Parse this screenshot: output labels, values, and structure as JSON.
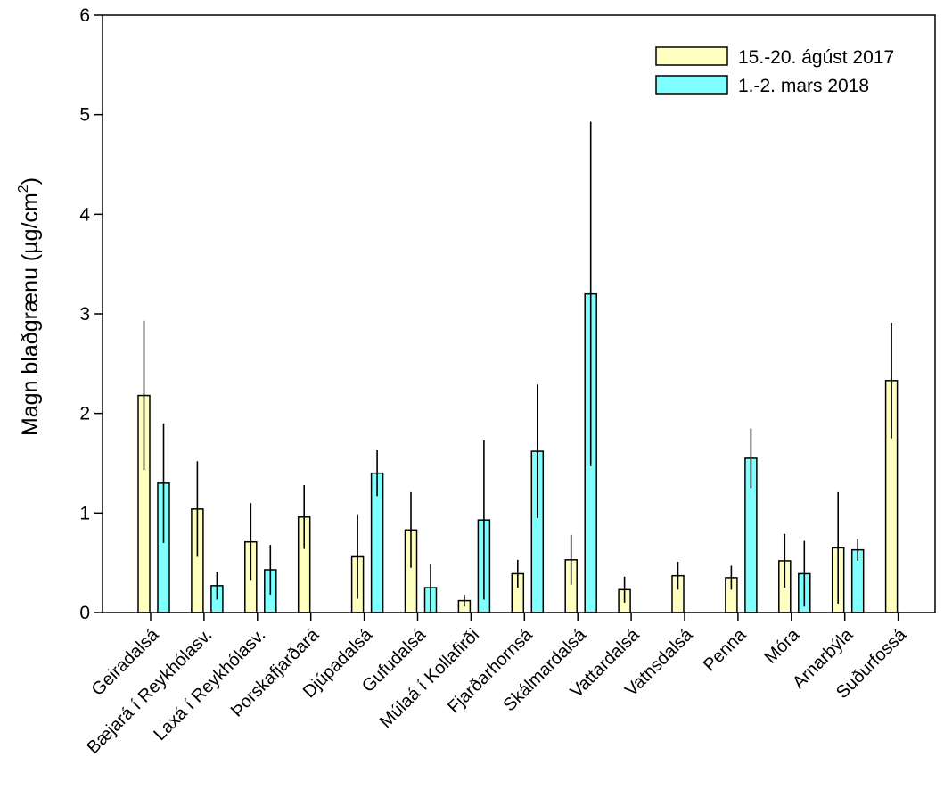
{
  "chart_data": {
    "type": "bar",
    "categories": [
      "Geiradalsá",
      "Bæjará í Reykhólasv.",
      "Laxá í Reykhólasv.",
      "Þorskafjarðará",
      "Djúpadalsá",
      "Gufudalsá",
      "Múlaá í Kollafirði",
      "Fjarðarhornsá",
      "Skálmardalsá",
      "Vattardalsá",
      "Vatnsdalsá",
      "Penna",
      "Móra",
      "Arnarbýla",
      "Suðurfossá"
    ],
    "series": [
      {
        "name": "15.-20. ágúst 2017",
        "color": "#ffffc0",
        "values": [
          2.18,
          1.04,
          0.71,
          0.96,
          0.56,
          0.83,
          0.12,
          0.39,
          0.53,
          0.23,
          0.37,
          0.35,
          0.52,
          0.65,
          2.33
        ],
        "error": [
          0.75,
          0.48,
          0.39,
          0.32,
          0.42,
          0.38,
          0.06,
          0.14,
          0.25,
          0.13,
          0.14,
          0.12,
          0.27,
          0.56,
          0.58
        ]
      },
      {
        "name": "1.-2. mars 2018",
        "color": "#80ffff",
        "values": [
          1.3,
          0.27,
          0.43,
          null,
          1.4,
          0.25,
          0.93,
          1.62,
          3.2,
          null,
          null,
          1.55,
          0.39,
          0.63,
          null
        ],
        "error": [
          0.6,
          0.14,
          0.25,
          null,
          0.23,
          0.24,
          0.8,
          0.67,
          1.73,
          null,
          null,
          0.3,
          0.33,
          0.11,
          null
        ]
      }
    ],
    "ylabel": "Magn blaðgrænu (µg/cm",
    "ylabel_superscript": "2",
    "ylabel_suffix": ")",
    "ylim": [
      0,
      6
    ],
    "yticks": [
      0,
      1,
      2,
      3,
      4,
      5,
      6
    ],
    "grid": false,
    "legend_position": "top-right"
  }
}
